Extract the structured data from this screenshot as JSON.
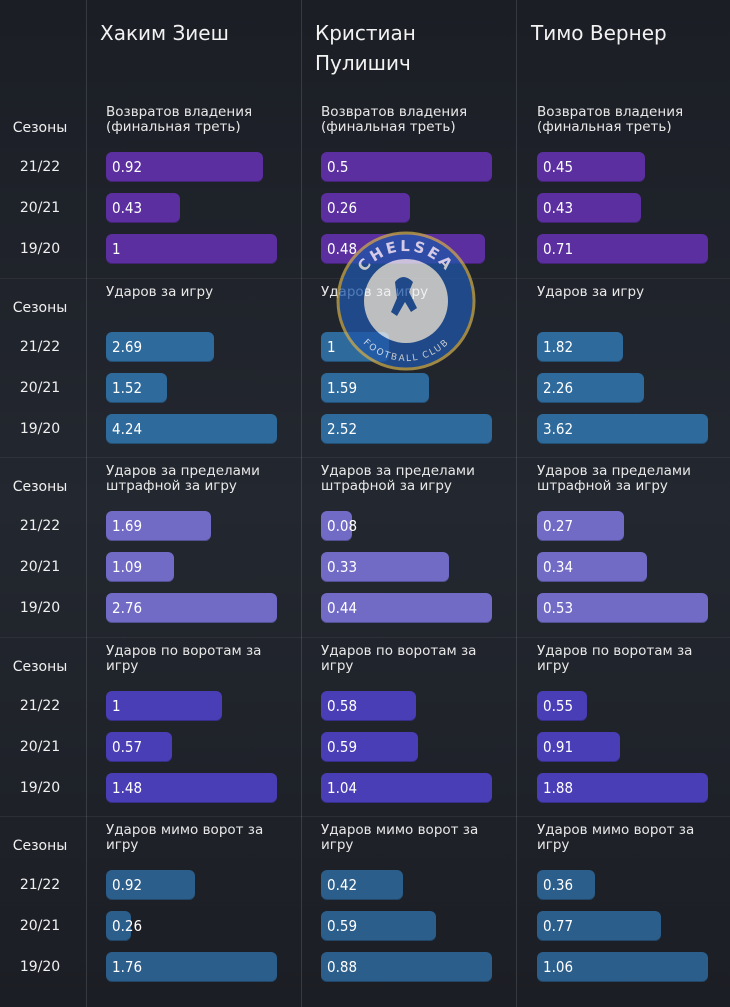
{
  "chart_data": {
    "type": "bar",
    "season_label": "Сезоны",
    "categories": [
      "21/22",
      "20/21",
      "19/20"
    ],
    "players": [
      "Хаким Зиеш",
      "Кристиан Пулишич",
      "Тимо Вернер"
    ],
    "panels": [
      {
        "title": "Возвратов владения (финальная треть)",
        "color": "#5b2f9f",
        "values": [
          [
            0.92,
            0.43,
            1
          ],
          [
            0.5,
            0.26,
            0.48
          ],
          [
            0.45,
            0.43,
            0.71
          ]
        ]
      },
      {
        "title": "Ударов за игру",
        "color": "#2f6a9c",
        "values": [
          [
            2.69,
            1.52,
            4.24
          ],
          [
            1,
            1.59,
            2.52
          ],
          [
            1.82,
            2.26,
            3.62
          ]
        ]
      },
      {
        "title": "Ударов за пределами штрафной за игру",
        "color": "#716bc6",
        "values": [
          [
            1.69,
            1.09,
            2.76
          ],
          [
            0.08,
            0.33,
            0.44
          ],
          [
            0.27,
            0.34,
            0.53
          ]
        ]
      },
      {
        "title": "Ударов по воротам за игру",
        "color": "#4a3eb7",
        "values": [
          [
            1,
            0.57,
            1.48
          ],
          [
            0.58,
            0.59,
            1.04
          ],
          [
            0.55,
            0.91,
            1.88
          ]
        ]
      },
      {
        "title": "Ударов мимо ворот за игру",
        "color": "#2c5e8b",
        "values": [
          [
            0.92,
            0.26,
            1.76
          ],
          [
            0.42,
            0.59,
            0.88
          ],
          [
            0.36,
            0.77,
            1.06
          ]
        ]
      }
    ]
  },
  "logo": {
    "top": "CHELSEA",
    "bottom": "FOOTBALL CLUB"
  }
}
